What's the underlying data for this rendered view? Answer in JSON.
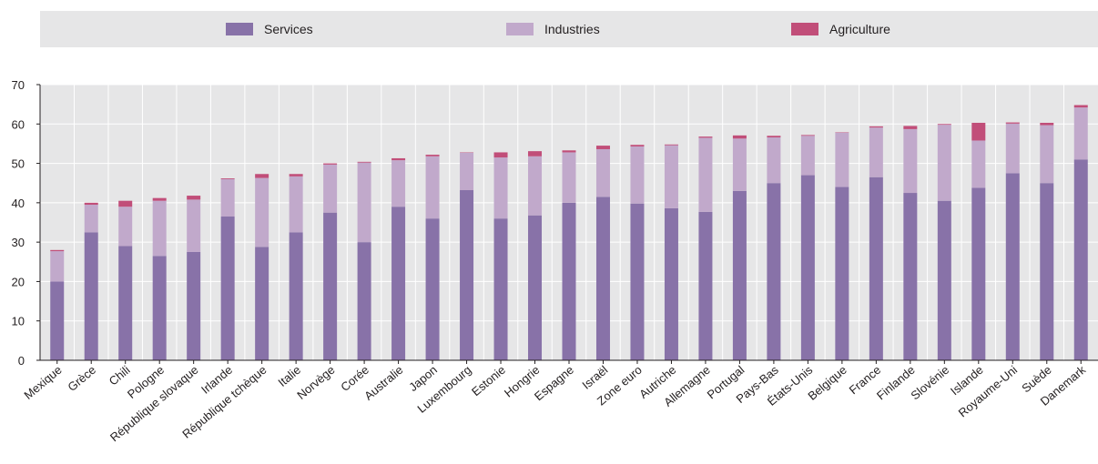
{
  "colors": {
    "services": "#8872a8",
    "industries": "#c1a9cb",
    "agriculture": "#c14e79",
    "grid": "#ffffff",
    "plot_bg": "#e6e6e7",
    "axis": "#231f20"
  },
  "legend": [
    {
      "key": "services",
      "label": "Services"
    },
    {
      "key": "industries",
      "label": "Industries"
    },
    {
      "key": "agriculture",
      "label": "Agriculture"
    }
  ],
  "chart_data": {
    "type": "bar",
    "stacked": true,
    "legend_position": "top",
    "grid": true,
    "ylim": [
      0,
      70
    ],
    "yticks": [
      0,
      10,
      20,
      30,
      40,
      50,
      60,
      70
    ],
    "categories": [
      "Mexique",
      "Grèce",
      "Chili",
      "Pologne",
      "République slovaque",
      "Irlande",
      "République tchèque",
      "Italie",
      "Norvège",
      "Corée",
      "Australie",
      "Japon",
      "Luxembourg",
      "Estonie",
      "Hongrie",
      "Espagne",
      "Israël",
      "Zone euro",
      "Autriche",
      "Allemagne",
      "Portugal",
      "Pays-Bas",
      "États-Unis",
      "Belgique",
      "France",
      "Finlande",
      "Slovénie",
      "Islande",
      "Royaume-Uni",
      "Suède",
      "Danemark"
    ],
    "series": [
      {
        "name": "Services",
        "key": "services",
        "values": [
          20,
          32.5,
          29,
          26.5,
          27.5,
          36.5,
          28.8,
          32.5,
          37.5,
          30,
          39,
          36,
          43.2,
          36,
          36.8,
          40,
          41.5,
          39.8,
          38.6,
          37.7,
          43,
          45,
          47,
          44,
          46.5,
          42.5,
          40.5,
          43.8,
          47.5,
          45,
          51
        ]
      },
      {
        "name": "Industries",
        "key": "industries",
        "values": [
          7.7,
          7,
          10,
          14,
          13.3,
          9.5,
          17.5,
          14.2,
          12.2,
          20.2,
          11.8,
          15.8,
          9.5,
          15.5,
          15,
          12.8,
          12.1,
          14.5,
          16,
          18.8,
          13.3,
          11.6,
          10,
          13.8,
          12.6,
          16.2,
          19.3,
          12,
          12.6,
          14.7,
          13.2
        ]
      },
      {
        "name": "Agriculture",
        "key": "agriculture",
        "values": [
          0.3,
          0.5,
          1.5,
          0.7,
          1,
          0.2,
          1,
          0.6,
          0.3,
          0.2,
          0.5,
          0.4,
          0.1,
          1.3,
          1.3,
          0.5,
          0.9,
          0.4,
          0.2,
          0.3,
          0.8,
          0.4,
          0.2,
          0.1,
          0.3,
          0.8,
          0.2,
          4.5,
          0.3,
          0.6,
          0.6
        ]
      }
    ]
  }
}
